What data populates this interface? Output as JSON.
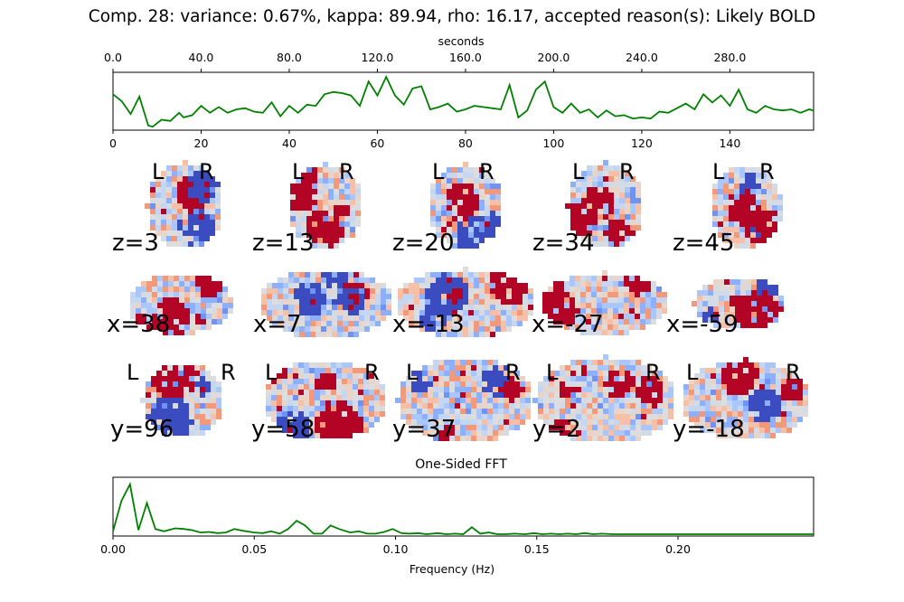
{
  "title": "Comp. 28: variance: 0.67%, kappa: 89.94, rho: 16.17, accepted reason(s): Likely BOLD",
  "colors": {
    "line": "#008000",
    "red": "#b40426",
    "blue": "#3b4cc0",
    "light": "#dddddd"
  },
  "timeseries": {
    "top_axis_label": "seconds",
    "top_ticks": [
      "0.0",
      "40.0",
      "80.0",
      "120.0",
      "160.0",
      "200.0",
      "240.0",
      "280.0"
    ],
    "top_tick_values": [
      0,
      40,
      80,
      120,
      160,
      200,
      240,
      280
    ],
    "bottom_ticks": [
      "0",
      "20",
      "40",
      "60",
      "80",
      "100",
      "120",
      "140"
    ],
    "bottom_tick_values": [
      0,
      20,
      40,
      60,
      80,
      100,
      120,
      140
    ],
    "xlim": [
      0,
      159
    ],
    "seconds_max": 318
  },
  "brain": {
    "L": "L",
    "R": "R",
    "axial": [
      "z=3",
      "z=13",
      "z=20",
      "z=34",
      "z=45"
    ],
    "sagittal": [
      "x=38",
      "x=7",
      "x=-13",
      "x=-27",
      "x=-59"
    ],
    "coronal": [
      "y=96",
      "y=58",
      "y=37",
      "y=2",
      "y=-18"
    ]
  },
  "fft": {
    "title": "One-Sided FFT",
    "xlabel": "Frequency (Hz)",
    "ticks": [
      "0.00",
      "0.05",
      "0.10",
      "0.15",
      "0.20"
    ],
    "tick_values": [
      0,
      0.05,
      0.1,
      0.15,
      0.2
    ],
    "xlim": [
      0,
      0.248
    ]
  },
  "chart_data": [
    {
      "type": "line",
      "title": "",
      "xlabel": "seconds",
      "ylabel": "",
      "xlim": [
        0,
        159
      ],
      "x": [
        0,
        2,
        4,
        6,
        8,
        9,
        11,
        13,
        15,
        16,
        18,
        20,
        22,
        24,
        26,
        28,
        30,
        32,
        34,
        36,
        38,
        40,
        42,
        44,
        46,
        48,
        50,
        52,
        54,
        56,
        58,
        60,
        62,
        64,
        66,
        68,
        70,
        72,
        74,
        76,
        78,
        80,
        82,
        84,
        86,
        88,
        90,
        92,
        94,
        96,
        98,
        100,
        102,
        104,
        106,
        108,
        110,
        112,
        114,
        116,
        118,
        120,
        122,
        124,
        126,
        128,
        130,
        132,
        134,
        136,
        138,
        140,
        142,
        144,
        146,
        148,
        150,
        152,
        154,
        156,
        158,
        159
      ],
      "y": [
        0.62,
        0.5,
        0.28,
        0.58,
        0.08,
        0.06,
        0.18,
        0.16,
        0.3,
        0.22,
        0.26,
        0.42,
        0.3,
        0.4,
        0.3,
        0.36,
        0.38,
        0.32,
        0.3,
        0.48,
        0.24,
        0.42,
        0.3,
        0.44,
        0.42,
        0.62,
        0.66,
        0.64,
        0.6,
        0.42,
        0.84,
        0.6,
        0.92,
        0.6,
        0.44,
        0.72,
        0.76,
        0.36,
        0.4,
        0.46,
        0.32,
        0.36,
        0.42,
        0.4,
        0.38,
        0.36,
        0.78,
        0.22,
        0.34,
        0.7,
        0.84,
        0.4,
        0.3,
        0.46,
        0.3,
        0.36,
        0.22,
        0.34,
        0.24,
        0.26,
        0.2,
        0.22,
        0.2,
        0.32,
        0.3,
        0.38,
        0.46,
        0.36,
        0.62,
        0.48,
        0.6,
        0.42,
        0.7,
        0.36,
        0.3,
        0.42,
        0.36,
        0.34,
        0.36,
        0.3,
        0.36,
        0.34
      ]
    },
    {
      "type": "line",
      "title": "One-Sided FFT",
      "xlabel": "Frequency (Hz)",
      "ylabel": "",
      "xlim": [
        0,
        0.248
      ],
      "x": [
        0,
        0.003,
        0.006,
        0.009,
        0.012,
        0.015,
        0.018,
        0.022,
        0.025,
        0.028,
        0.031,
        0.034,
        0.037,
        0.04,
        0.043,
        0.046,
        0.05,
        0.053,
        0.056,
        0.059,
        0.062,
        0.065,
        0.068,
        0.071,
        0.074,
        0.077,
        0.08,
        0.084,
        0.087,
        0.09,
        0.093,
        0.096,
        0.099,
        0.102,
        0.105,
        0.108,
        0.111,
        0.115,
        0.118,
        0.121,
        0.124,
        0.127,
        0.13,
        0.133,
        0.136,
        0.139,
        0.142,
        0.146,
        0.149,
        0.152,
        0.155,
        0.158,
        0.161,
        0.164,
        0.167,
        0.17,
        0.173,
        0.177,
        0.18,
        0.19,
        0.2,
        0.21,
        0.22,
        0.23,
        0.24,
        0.248
      ],
      "y": [
        0.08,
        0.6,
        0.88,
        0.1,
        0.56,
        0.12,
        0.08,
        0.13,
        0.12,
        0.1,
        0.06,
        0.07,
        0.05,
        0.06,
        0.12,
        0.09,
        0.06,
        0.05,
        0.08,
        0.04,
        0.12,
        0.26,
        0.18,
        0.04,
        0.04,
        0.18,
        0.12,
        0.06,
        0.08,
        0.04,
        0.04,
        0.07,
        0.12,
        0.05,
        0.04,
        0.05,
        0.03,
        0.05,
        0.03,
        0.04,
        0.03,
        0.15,
        0.04,
        0.06,
        0.03,
        0.03,
        0.04,
        0.03,
        0.05,
        0.03,
        0.04,
        0.03,
        0.04,
        0.03,
        0.05,
        0.03,
        0.04,
        0.03,
        0.03,
        0.03,
        0.03,
        0.03,
        0.03,
        0.03,
        0.03,
        0.03
      ]
    }
  ]
}
